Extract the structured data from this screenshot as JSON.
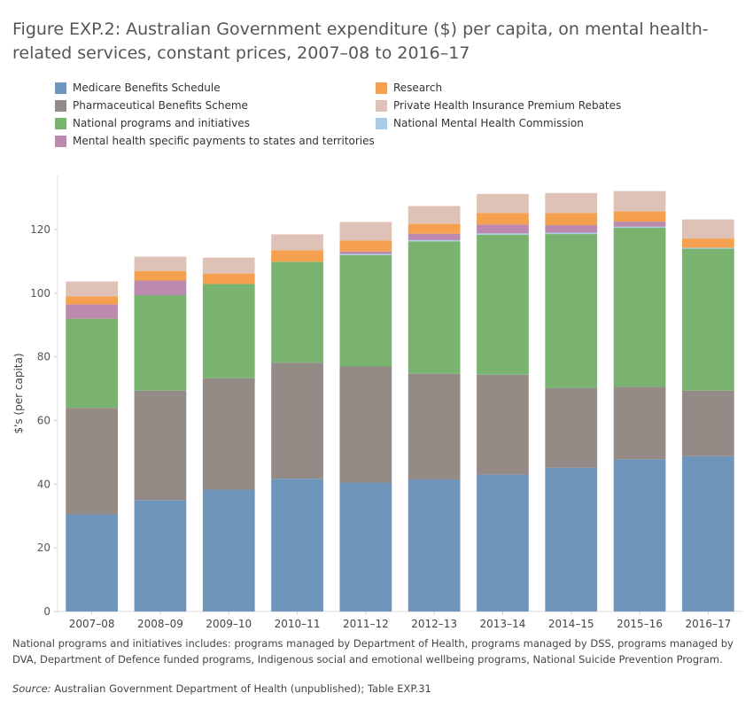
{
  "title": "Figure EXP.2: Australian Government expenditure ($) per capita, on mental health-related services, constant prices, 2007–08 to 2016–17",
  "footnote": "National programs and initiatives includes: programs managed by Department of Health, programs managed by DSS, programs managed by DVA, Department of Defence funded programs, Indigenous social and emotional wellbeing programs, National Suicide Prevention Program.",
  "source_label": "Source:",
  "source_text": " Australian Government Department of Health (unpublished); Table EXP.31",
  "legend_items": [
    {
      "label": "Medicare Benefits Schedule",
      "color": "#6f95ba"
    },
    {
      "label": "Research",
      "color": "#f4a04f"
    },
    {
      "label": "Pharmaceutical Benefits Scheme",
      "color": "#948a86"
    },
    {
      "label": "Private Health Insurance Premium Rebates",
      "color": "#dfc2b7"
    },
    {
      "label": "National programs and initiatives",
      "color": "#7ab370"
    },
    {
      "label": "National Mental Health Commission",
      "color": "#a9cde8"
    },
    {
      "label": "Mental health specific payments to states and territories",
      "color": "#bb8aae"
    }
  ],
  "chart_data": {
    "type": "bar",
    "stacked": true,
    "ylabel": "$'s (per capita)",
    "ylim": [
      0,
      137
    ],
    "yticks": [
      0,
      20,
      40,
      60,
      80,
      100,
      120
    ],
    "grid": false,
    "legend_position": "top",
    "categories": [
      "2007–08",
      "2008–09",
      "2009–10",
      "2010–11",
      "2011–12",
      "2012–13",
      "2013–14",
      "2014–15",
      "2015–16",
      "2016–17"
    ],
    "series": [
      {
        "name": "Medicare Benefits Schedule",
        "color": "#6f95ba",
        "values": [
          30.5,
          35.0,
          38.3,
          41.7,
          40.5,
          41.5,
          43.0,
          45.2,
          47.8,
          48.8
        ]
      },
      {
        "name": "Pharmaceutical Benefits Scheme",
        "color": "#948a86",
        "values": [
          33.5,
          34.4,
          35.0,
          36.5,
          36.5,
          33.2,
          31.4,
          25.0,
          22.8,
          20.6
        ]
      },
      {
        "name": "National programs and initiatives",
        "color": "#7ab370",
        "values": [
          28.0,
          30.0,
          29.6,
          31.7,
          35.0,
          41.6,
          44.0,
          48.4,
          50.0,
          44.6
        ]
      },
      {
        "name": "National Mental Health Commission",
        "color": "#a9cde8",
        "values": [
          0.0,
          0.0,
          0.0,
          0.0,
          0.3,
          0.4,
          0.4,
          0.4,
          0.3,
          0.3
        ]
      },
      {
        "name": "Mental health specific payments to states and territories",
        "color": "#bb8aae",
        "values": [
          4.5,
          4.6,
          0.0,
          0.0,
          0.8,
          2.0,
          2.8,
          2.4,
          1.6,
          0.0
        ]
      },
      {
        "name": "Research",
        "color": "#f4a04f",
        "values": [
          2.5,
          3.0,
          3.3,
          3.6,
          3.5,
          3.1,
          3.6,
          3.8,
          3.2,
          2.9
        ]
      },
      {
        "name": "Private Health Insurance Premium Rebates",
        "color": "#dfc2b7",
        "values": [
          4.7,
          4.5,
          5.0,
          5.0,
          5.8,
          5.6,
          6.0,
          6.3,
          6.4,
          6.0
        ]
      }
    ]
  }
}
